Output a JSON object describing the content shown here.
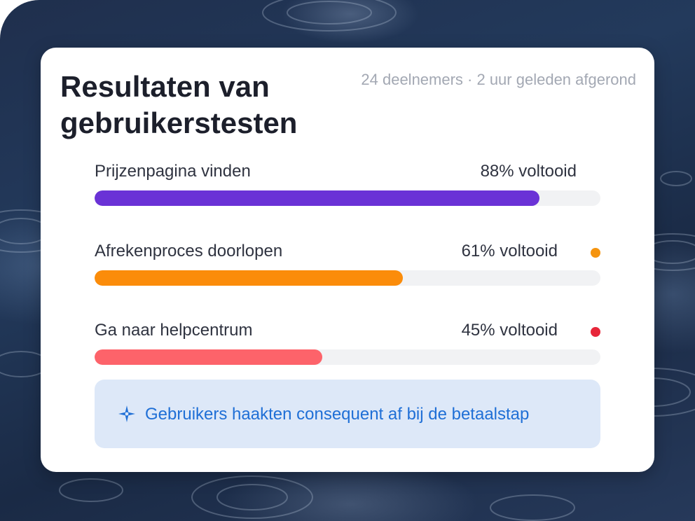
{
  "card": {
    "title": "Resultaten van gebruikerstesten",
    "meta": "24 deelnemers · 2 uur geleden afgerond"
  },
  "tasks": [
    {
      "label": "Prijzenpagina vinden",
      "value_text": "88% voltooid",
      "completion": 0.88,
      "color": "#6a32d6",
      "status_color": null
    },
    {
      "label": "Afrekenproces doorlopen",
      "value_text": "61% voltooid",
      "completion": 0.61,
      "color": "#fb8c0a",
      "status_color": "#f5940f"
    },
    {
      "label": "Ga naar helpcentrum",
      "value_text": "45% voltooid",
      "completion": 0.45,
      "color": "#fd636a",
      "status_color": "#e7263a"
    }
  ],
  "insight": {
    "icon": "sparkle-icon",
    "text": "Gebruikers haakten consequent af bij de betaalstap",
    "color": "#1f6fd6"
  }
}
